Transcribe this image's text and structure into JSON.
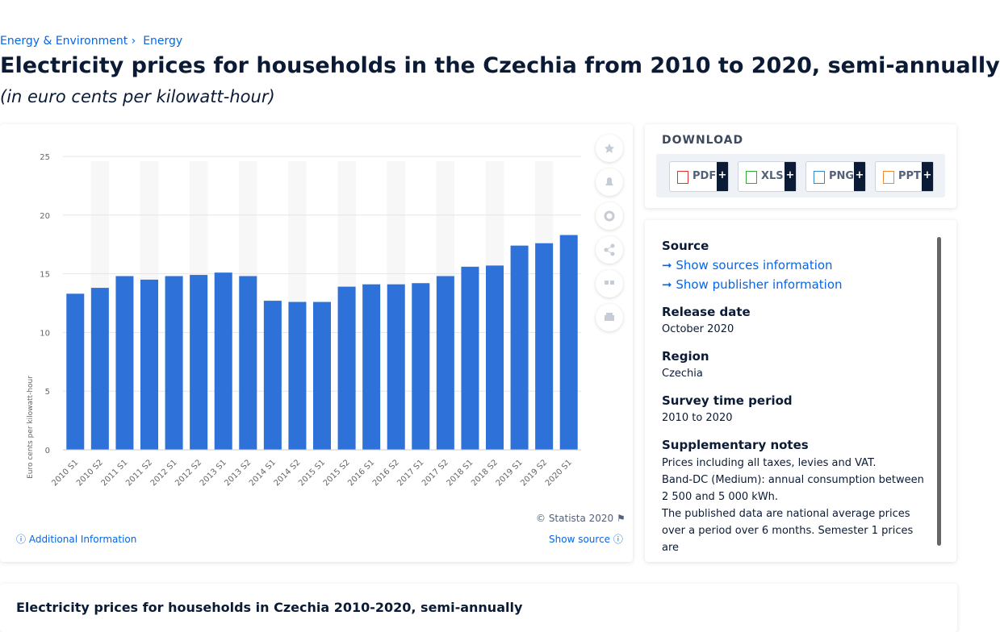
{
  "breadcrumb": [
    "Energy & Environment",
    "Energy"
  ],
  "header": {
    "title": "Electricity prices for households in the Czechia from 2010 to 2020, semi-annually",
    "subtitle": "(in euro cents per kilowatt-hour)"
  },
  "chart_data": {
    "type": "bar",
    "y_label": "Euro cents per kilowatt-hour",
    "categories": [
      "2010 S1",
      "2010 S2",
      "2011 S1",
      "2011 S2",
      "2012 S1",
      "2012 S2",
      "2013 S1",
      "2013 S2",
      "2014 S1",
      "2014 S2",
      "2015 S1",
      "2015 S2",
      "2016 S1",
      "2016 S2",
      "2017 S1",
      "2017 S2",
      "2018 S1",
      "2018 S2",
      "2019 S1",
      "2019 S2",
      "2020 S1"
    ],
    "values": [
      13.3,
      13.8,
      14.8,
      14.5,
      14.8,
      14.9,
      15.1,
      14.8,
      12.7,
      12.6,
      12.6,
      13.9,
      14.1,
      14.1,
      14.2,
      14.8,
      15.6,
      15.7,
      17.4,
      17.6,
      18.3
    ],
    "color": "#2e72d9",
    "ylim": [
      0,
      25
    ],
    "yticks": [
      0,
      5,
      10,
      15,
      20,
      25
    ],
    "grid": true,
    "stripes": true
  },
  "chart_footer": {
    "copyright": "© Statista 2020",
    "additional": "Additional Information",
    "show_source": "Show source"
  },
  "download": {
    "title": "DOWNLOAD",
    "buttons": [
      {
        "label": "PDF",
        "more": "+"
      },
      {
        "label": "XLS",
        "more": "+"
      },
      {
        "label": "PNG",
        "more": "+"
      },
      {
        "label": "PPT",
        "more": "+"
      }
    ]
  },
  "info": {
    "source": "Source",
    "show_sources": "Show sources information",
    "show_publisher": "Show publisher information",
    "release_label": "Release date",
    "release": "October 2020",
    "region_label": "Region",
    "region": "Czechia",
    "period_label": "Survey time period",
    "period": "2010 to 2020",
    "notes_label": "Supplementary notes",
    "notes": [
      "Prices including all taxes, levies and VAT.",
      "Band-DC (Medium): annual consumption between 2 500 and 5 000 kWh.",
      "The published data are national average prices over a period over 6 months. Semester 1 prices are"
    ]
  },
  "bottom_title": "Electricity prices for households in Czechia 2010-2020, semi-annually"
}
